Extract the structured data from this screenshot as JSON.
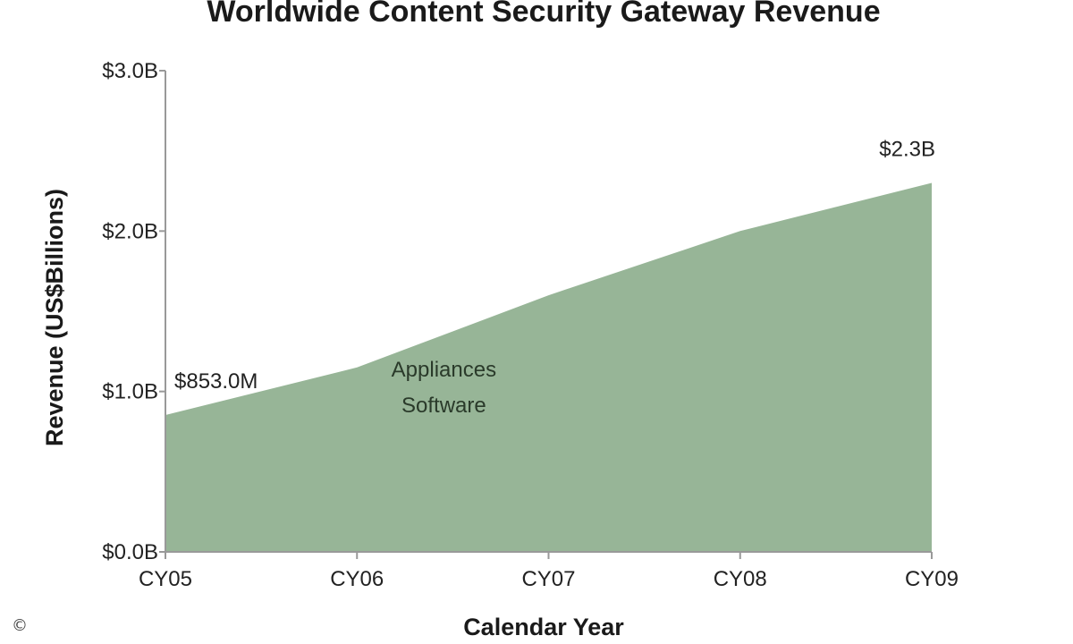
{
  "chart_data": {
    "type": "area",
    "title": "Worldwide Content Security Gateway Revenue",
    "xlabel": "Calendar Year",
    "ylabel": "Revenue (US$Billions)",
    "categories": [
      "CY05",
      "CY06",
      "CY07",
      "CY08",
      "CY09"
    ],
    "series": [
      {
        "name_lines": [
          "Appliances",
          "Software"
        ],
        "values": [
          0.853,
          1.15,
          1.6,
          2.0,
          2.3
        ]
      }
    ],
    "ylim": [
      0,
      3.0
    ],
    "yticks": [
      {
        "value": 0.0,
        "label": "$0.0B"
      },
      {
        "value": 1.0,
        "label": "$1.0B"
      },
      {
        "value": 2.0,
        "label": "$2.0B"
      },
      {
        "value": 3.0,
        "label": "$3.0B"
      }
    ],
    "data_labels": [
      {
        "category": "CY05",
        "text": "$853.0M"
      },
      {
        "category": "CY09",
        "text": "$2.3B"
      }
    ],
    "grid": false,
    "legend_placement": "inside-center",
    "colors": {
      "area": "#97b597",
      "axis": "#999999",
      "text": "#222222"
    }
  },
  "copyright_symbol": "©"
}
